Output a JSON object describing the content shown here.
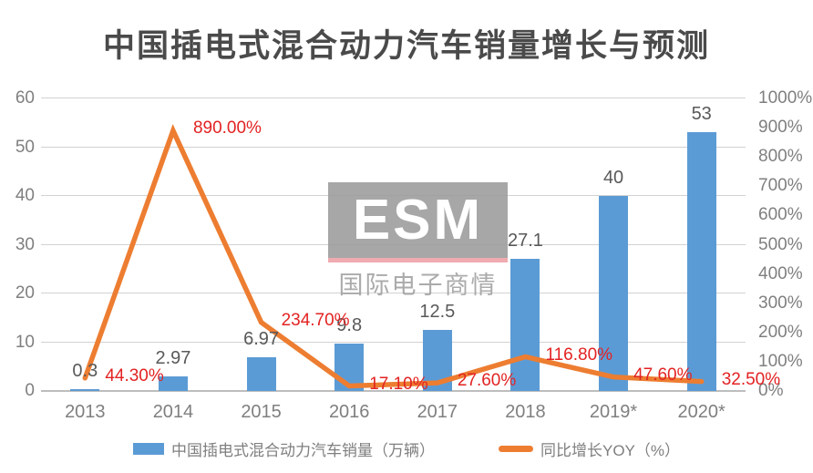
{
  "title": "中国插电式混合动力汽车销量增长与预测",
  "watermark": {
    "logo": "ESM",
    "subtitle": "国际电子商情"
  },
  "colors": {
    "bar": "#5B9BD5",
    "line": "#ED7D31",
    "yoy_label": "#E32222",
    "axis_text": "#7F7F7F",
    "bar_label": "#595959",
    "grid": "#D2D2D2",
    "baseline": "#BDBDBD",
    "title_text": "#4A4A4A",
    "watermark_bg": "#9C9C9C",
    "watermark_underline": "#EFA0A6",
    "watermark_sub": "#A0A0A0"
  },
  "chart_data": {
    "type": "bar+line",
    "title": "中国插电式混合动力汽车销量增长与预测",
    "categories": [
      "2013",
      "2014",
      "2015",
      "2016",
      "2017",
      "2018",
      "2019*",
      "2020*"
    ],
    "series": [
      {
        "name": "中国插电式混合动力汽车销量（万辆）",
        "type": "bar",
        "axis": "left",
        "values": [
          0.3,
          2.97,
          6.97,
          9.8,
          12.5,
          27.1,
          40,
          53
        ],
        "labels": [
          "0.3",
          "2.97",
          "6.97",
          "9.8",
          "12.5",
          "27.1",
          "40",
          "53"
        ]
      },
      {
        "name": "同比增长YOY（%）",
        "type": "line",
        "axis": "right",
        "values": [
          44.3,
          890,
          234.7,
          17.1,
          27.6,
          116.8,
          47.6,
          32.5
        ],
        "labels": [
          "44.30%",
          "890.00%",
          "234.70%",
          "17.10%",
          "27.60%",
          "116.80%",
          "47.60%",
          "32.50%"
        ]
      }
    ],
    "left_axis": {
      "min": 0,
      "max": 60,
      "ticks": [
        "0",
        "10",
        "20",
        "30",
        "40",
        "50",
        "60"
      ]
    },
    "right_axis": {
      "min": 0,
      "max": 1000,
      "ticks": [
        "0%",
        "100%",
        "200%",
        "300%",
        "400%",
        "500%",
        "600%",
        "700%",
        "800%",
        "900%",
        "1000%"
      ]
    },
    "grid": true,
    "legend_position": "bottom"
  },
  "legend": {
    "items": [
      {
        "label": "中国插电式混合动力汽车销量（万辆）",
        "swatch": "bar"
      },
      {
        "label": "同比增长YOY（%）",
        "swatch": "line"
      }
    ]
  }
}
